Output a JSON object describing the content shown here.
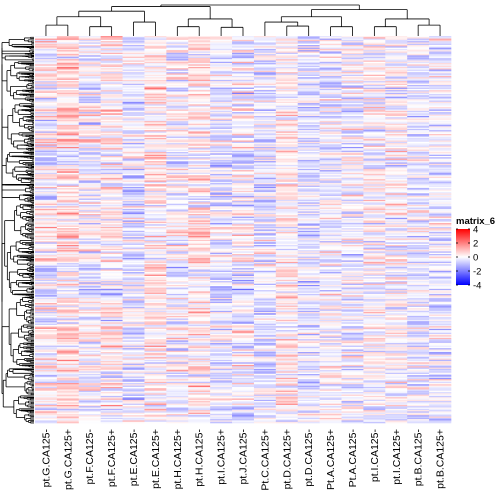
{
  "chart_data": {
    "type": "heatmap",
    "columns": [
      "pt.G.CA125-",
      "pt.G.CA125+",
      "pt.F.CA125-",
      "pt.F.CA125+",
      "pt.E.CA125-",
      "pt.E.CA125+",
      "pt.H.CA125+",
      "pt.H.CA125-",
      "pt.I.CA125+",
      "pt.J.CA125-",
      "Pt.C.CA125+",
      "pt.D.CA125+",
      "pt.D.CA125-",
      "Pt.A.CA125+",
      "Pt.A.CA125-",
      "pt.I.CA125-",
      "pt.I.CA125+",
      "pt.B.CA125-",
      "pt.B.CA125+"
    ],
    "row_count": 300,
    "color_scale": {
      "title": "matrix_6",
      "ticks": [
        4,
        2,
        0,
        -2,
        -4
      ],
      "range": [
        -4,
        4
      ],
      "low_color": "#0000ff",
      "mid_color": "#ffffff",
      "high_color": "#ff0000"
    },
    "row_dendrogram": true,
    "column_dendrogram": true,
    "column_groups": [
      [
        "pt.G.CA125-",
        "pt.G.CA125+",
        "pt.F.CA125-",
        "pt.F.CA125+"
      ],
      [
        "pt.E.CA125-",
        "pt.E.CA125+"
      ],
      [
        "pt.H.CA125+",
        "pt.H.CA125-",
        "pt.I.CA125+",
        "pt.J.CA125-"
      ],
      [
        "Pt.C.CA125+",
        "pt.D.CA125+",
        "pt.D.CA125-",
        "Pt.A.CA125+",
        "Pt.A.CA125-"
      ],
      [
        "pt.I.CA125-",
        "pt.I.CA125+",
        "pt.B.CA125-",
        "pt.B.CA125+"
      ]
    ]
  }
}
